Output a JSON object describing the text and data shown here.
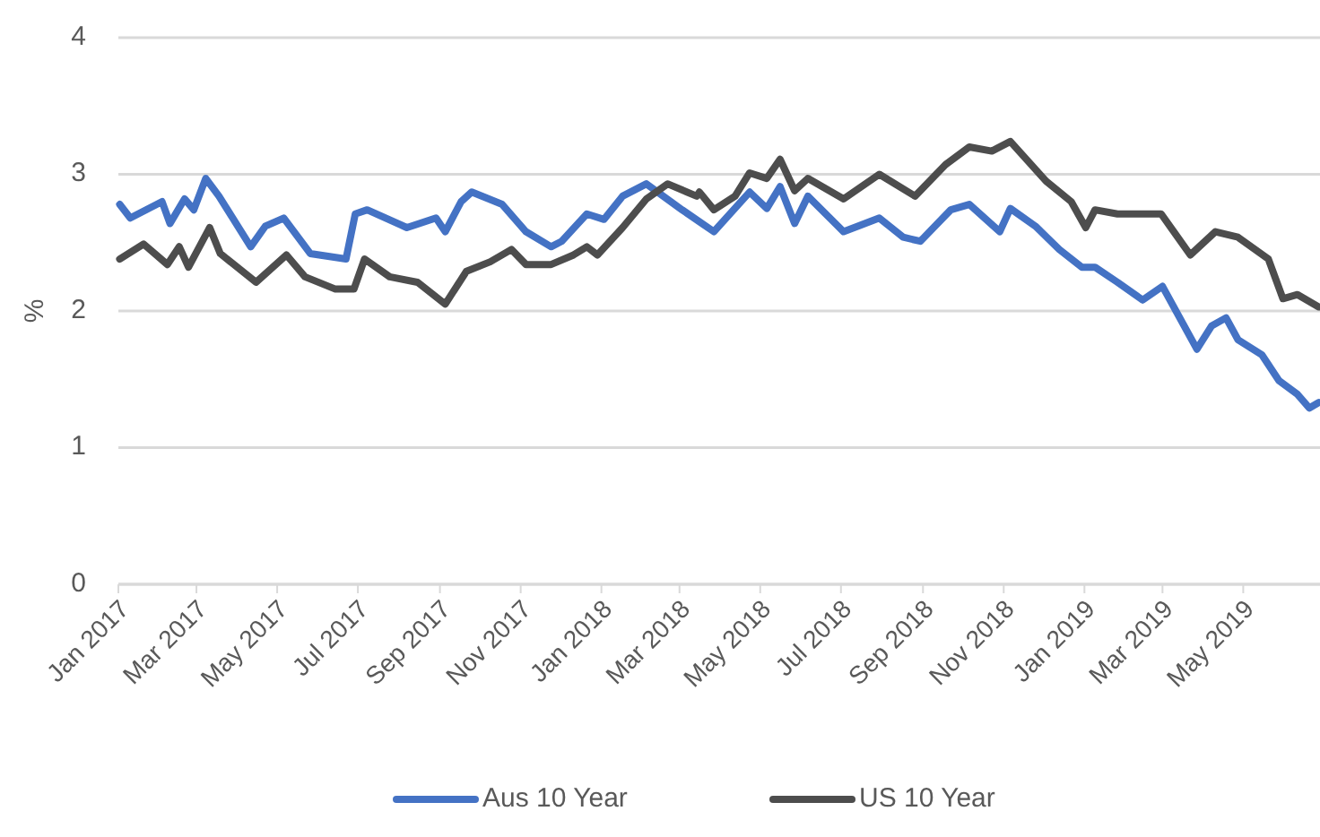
{
  "chart_data": {
    "type": "line",
    "ylabel": "%",
    "legend": "bottom",
    "grid": "y",
    "line_style": "solid",
    "marker": "none",
    "xlim": [
      "2017-01-01",
      "2019-06-28"
    ],
    "ylim": [
      0,
      4
    ],
    "yticks": [
      0,
      1,
      2,
      3,
      4
    ],
    "xticks": [
      {
        "value": "2017-01-01",
        "label": "Jan 2017"
      },
      {
        "value": "2017-03-01",
        "label": "Mar 2017"
      },
      {
        "value": "2017-05-01",
        "label": "May 2017"
      },
      {
        "value": "2017-07-01",
        "label": "Jul 2017"
      },
      {
        "value": "2017-09-01",
        "label": "Sep 2017"
      },
      {
        "value": "2017-11-01",
        "label": "Nov 2017"
      },
      {
        "value": "2018-01-01",
        "label": "Jan 2018"
      },
      {
        "value": "2018-03-01",
        "label": "Mar 2018"
      },
      {
        "value": "2018-05-01",
        "label": "May 2018"
      },
      {
        "value": "2018-07-01",
        "label": "Jul 2018"
      },
      {
        "value": "2018-09-01",
        "label": "Sep 2018"
      },
      {
        "value": "2018-11-01",
        "label": "Nov 2018"
      },
      {
        "value": "2019-01-01",
        "label": "Jan 2019"
      },
      {
        "value": "2019-03-01",
        "label": "Mar 2019"
      },
      {
        "value": "2019-05-01",
        "label": "May 2019"
      }
    ],
    "series": [
      {
        "name": "Aus 10 Year",
        "color": "#4472c4",
        "x": [
          "2017-01-02",
          "2017-01-10",
          "2017-02-03",
          "2017-02-09",
          "2017-02-20",
          "2017-02-27",
          "2017-03-08",
          "2017-03-18",
          "2017-04-11",
          "2017-04-22",
          "2017-05-06",
          "2017-05-26",
          "2017-06-22",
          "2017-06-29",
          "2017-07-08",
          "2017-08-07",
          "2017-08-29",
          "2017-09-05",
          "2017-09-17",
          "2017-09-25",
          "2017-10-18",
          "2017-11-05",
          "2017-11-24",
          "2017-12-02",
          "2017-12-21",
          "2018-01-03",
          "2018-01-17",
          "2018-02-04",
          "2018-03-03",
          "2018-03-27",
          "2018-04-23",
          "2018-05-06",
          "2018-05-16",
          "2018-05-27",
          "2018-06-06",
          "2018-07-03",
          "2018-07-30",
          "2018-08-17",
          "2018-08-30",
          "2018-09-22",
          "2018-10-06",
          "2018-10-29",
          "2018-11-06",
          "2018-11-25",
          "2018-12-13",
          "2018-12-30",
          "2019-01-09",
          "2019-01-26",
          "2019-02-14",
          "2019-03-01",
          "2019-03-27",
          "2019-04-07",
          "2019-04-18",
          "2019-04-27",
          "2019-05-15",
          "2019-05-28",
          "2019-06-11",
          "2019-06-20",
          "2019-06-27"
        ],
        "values": [
          2.78,
          2.68,
          2.8,
          2.64,
          2.82,
          2.74,
          2.97,
          2.84,
          2.47,
          2.62,
          2.68,
          2.42,
          2.38,
          2.71,
          2.74,
          2.61,
          2.68,
          2.58,
          2.8,
          2.87,
          2.78,
          2.58,
          2.47,
          2.51,
          2.71,
          2.67,
          2.84,
          2.93,
          2.74,
          2.58,
          2.87,
          2.75,
          2.91,
          2.64,
          2.84,
          2.58,
          2.68,
          2.54,
          2.51,
          2.74,
          2.78,
          2.58,
          2.75,
          2.62,
          2.45,
          2.32,
          2.32,
          2.21,
          2.08,
          2.18,
          1.72,
          1.89,
          1.95,
          1.79,
          1.68,
          1.49,
          1.39,
          1.29,
          1.33
        ]
      },
      {
        "name": "US 10 Year",
        "color": "#4d4d4d",
        "x": [
          "2017-01-02",
          "2017-01-20",
          "2017-02-07",
          "2017-02-16",
          "2017-02-23",
          "2017-03-11",
          "2017-03-19",
          "2017-04-15",
          "2017-05-08",
          "2017-05-22",
          "2017-06-14",
          "2017-06-28",
          "2017-07-06",
          "2017-07-25",
          "2017-08-15",
          "2017-09-05",
          "2017-09-21",
          "2017-10-09",
          "2017-10-25",
          "2017-11-05",
          "2017-11-24",
          "2017-12-11",
          "2017-12-21",
          "2017-12-29",
          "2018-01-17",
          "2018-02-04",
          "2018-02-20",
          "2018-03-14",
          "2018-03-16",
          "2018-03-27",
          "2018-04-12",
          "2018-04-23",
          "2018-05-06",
          "2018-05-16",
          "2018-05-27",
          "2018-06-06",
          "2018-07-03",
          "2018-07-30",
          "2018-08-26",
          "2018-09-18",
          "2018-10-06",
          "2018-10-23",
          "2018-11-06",
          "2018-12-03",
          "2018-12-22",
          "2019-01-02",
          "2019-01-09",
          "2019-01-26",
          "2019-02-28",
          "2019-03-22",
          "2019-04-10",
          "2019-04-27",
          "2019-05-20",
          "2019-05-31",
          "2019-06-11",
          "2019-06-27"
        ],
        "values": [
          2.38,
          2.49,
          2.34,
          2.47,
          2.32,
          2.61,
          2.42,
          2.21,
          2.41,
          2.25,
          2.16,
          2.16,
          2.38,
          2.25,
          2.21,
          2.05,
          2.29,
          2.36,
          2.45,
          2.34,
          2.34,
          2.41,
          2.47,
          2.41,
          2.61,
          2.82,
          2.93,
          2.84,
          2.87,
          2.74,
          2.84,
          3.01,
          2.97,
          3.11,
          2.88,
          2.97,
          2.82,
          3.0,
          2.84,
          3.07,
          3.2,
          3.17,
          3.24,
          2.95,
          2.8,
          2.61,
          2.74,
          2.71,
          2.71,
          2.41,
          2.58,
          2.54,
          2.38,
          2.09,
          2.12,
          2.03
        ]
      }
    ]
  }
}
